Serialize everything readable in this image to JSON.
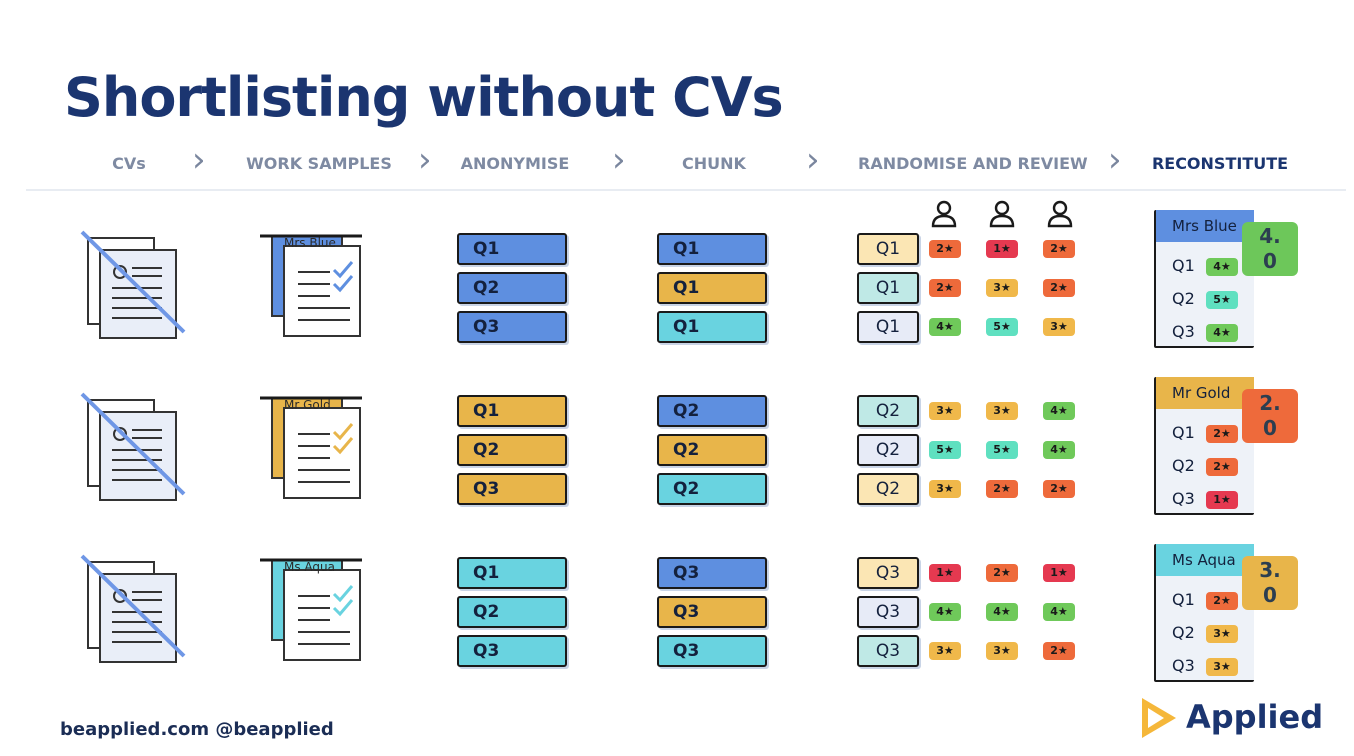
{
  "title": "Shortlisting without CVs",
  "steps": [
    "CVs",
    "WORK SAMPLES",
    "ANONYMISE",
    "CHUNK",
    "RANDOMISE AND REVIEW",
    "RECONSTITUTE"
  ],
  "colors": {
    "blue": "#5e8fe0",
    "gold": "#e8b54a",
    "aqua": "#69d3e0",
    "gold_light": "#fbe6b4",
    "aqua_light": "#bfe9e6",
    "lav_light": "#e7ebf7",
    "r1": "#e53950",
    "r2": "#ee6a3b",
    "r3": "#f0b84a",
    "r4": "#6fc95a",
    "r5": "#5fe0c0",
    "score_green": "#6dc75a",
    "score_orange": "#ee6a3b",
    "score_gold": "#e8b54a"
  },
  "work_samples": [
    "Mrs Blue",
    "Mr Gold",
    "Ms Aqua"
  ],
  "anonymise": [
    [
      "Q1",
      "Q2",
      "Q3"
    ],
    [
      "Q1",
      "Q2",
      "Q3"
    ],
    [
      "Q1",
      "Q2",
      "Q3"
    ]
  ],
  "chunk": [
    [
      "Q1",
      "Q1",
      "Q1"
    ],
    [
      "Q2",
      "Q2",
      "Q2"
    ],
    [
      "Q3",
      "Q3",
      "Q3"
    ]
  ],
  "review": {
    "reviewer_icon": "person-icon",
    "rows": [
      {
        "label": "Q1",
        "ratings": [
          "2★",
          "1★",
          "2★"
        ]
      },
      {
        "label": "Q1",
        "ratings": [
          "2★",
          "3★",
          "2★"
        ]
      },
      {
        "label": "Q1",
        "ratings": [
          "4★",
          "5★",
          "3★"
        ]
      },
      {
        "label": "Q2",
        "ratings": [
          "3★",
          "3★",
          "4★"
        ]
      },
      {
        "label": "Q2",
        "ratings": [
          "5★",
          "5★",
          "4★"
        ]
      },
      {
        "label": "Q2",
        "ratings": [
          "3★",
          "2★",
          "2★"
        ]
      },
      {
        "label": "Q3",
        "ratings": [
          "1★",
          "2★",
          "1★"
        ]
      },
      {
        "label": "Q3",
        "ratings": [
          "4★",
          "4★",
          "4★"
        ]
      },
      {
        "label": "Q3",
        "ratings": [
          "3★",
          "3★",
          "2★"
        ]
      }
    ]
  },
  "reconstitute": [
    {
      "name": "Mrs Blue",
      "score_line1": "4.",
      "score_line2": "0",
      "items": [
        {
          "q": "Q1",
          "r": "4★"
        },
        {
          "q": "Q2",
          "r": "5★"
        },
        {
          "q": "Q3",
          "r": "4★"
        }
      ]
    },
    {
      "name": "Mr Gold",
      "score_line1": "2.",
      "score_line2": "0",
      "items": [
        {
          "q": "Q1",
          "r": "2★"
        },
        {
          "q": "Q2",
          "r": "2★"
        },
        {
          "q": "Q3",
          "r": "1★"
        }
      ]
    },
    {
      "name": "Ms Aqua",
      "score_line1": "3.",
      "score_line2": "0",
      "items": [
        {
          "q": "Q1",
          "r": "2★"
        },
        {
          "q": "Q2",
          "r": "3★"
        },
        {
          "q": "Q3",
          "r": "3★"
        }
      ]
    }
  ],
  "footer": "beapplied.com   @beapplied",
  "logo": "Applied"
}
